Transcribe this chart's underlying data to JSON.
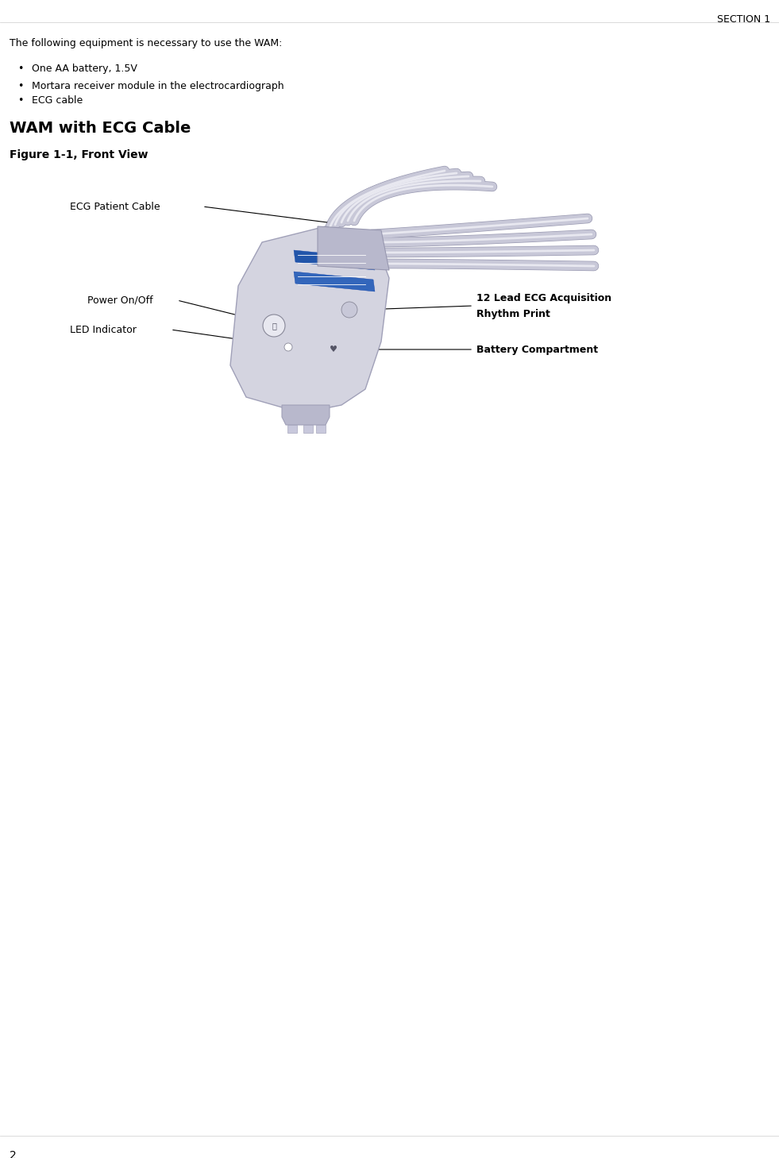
{
  "section_label": "SECTION 1",
  "page_number": "2",
  "intro_text": "The following equipment is necessary to use the WAM:",
  "bullet_items": [
    "One AA battery, 1.5V",
    "Mortara receiver module in the electrocardiograph",
    "ECG cable"
  ],
  "section_heading": "WAM with ECG Cable",
  "figure_caption": "Figure 1-1, Front View",
  "bg_color": "#ffffff",
  "text_color": "#000000",
  "device_body_color": "#d4d4e0",
  "device_edge_color": "#a0a0b8",
  "cable_fill": "#c8c8d8",
  "cable_edge": "#9898b0",
  "strip_color1": "#2255aa",
  "strip_color2": "#3366bb",
  "label_ecg_cable": "ECG Patient Cable",
  "label_power": "Power On/Off",
  "label_led": "LED Indicator",
  "label_12lead_1": "12 Lead ECG Acquisition",
  "label_12lead_2": "Rhythm Print",
  "label_battery": "Battery Compartment"
}
